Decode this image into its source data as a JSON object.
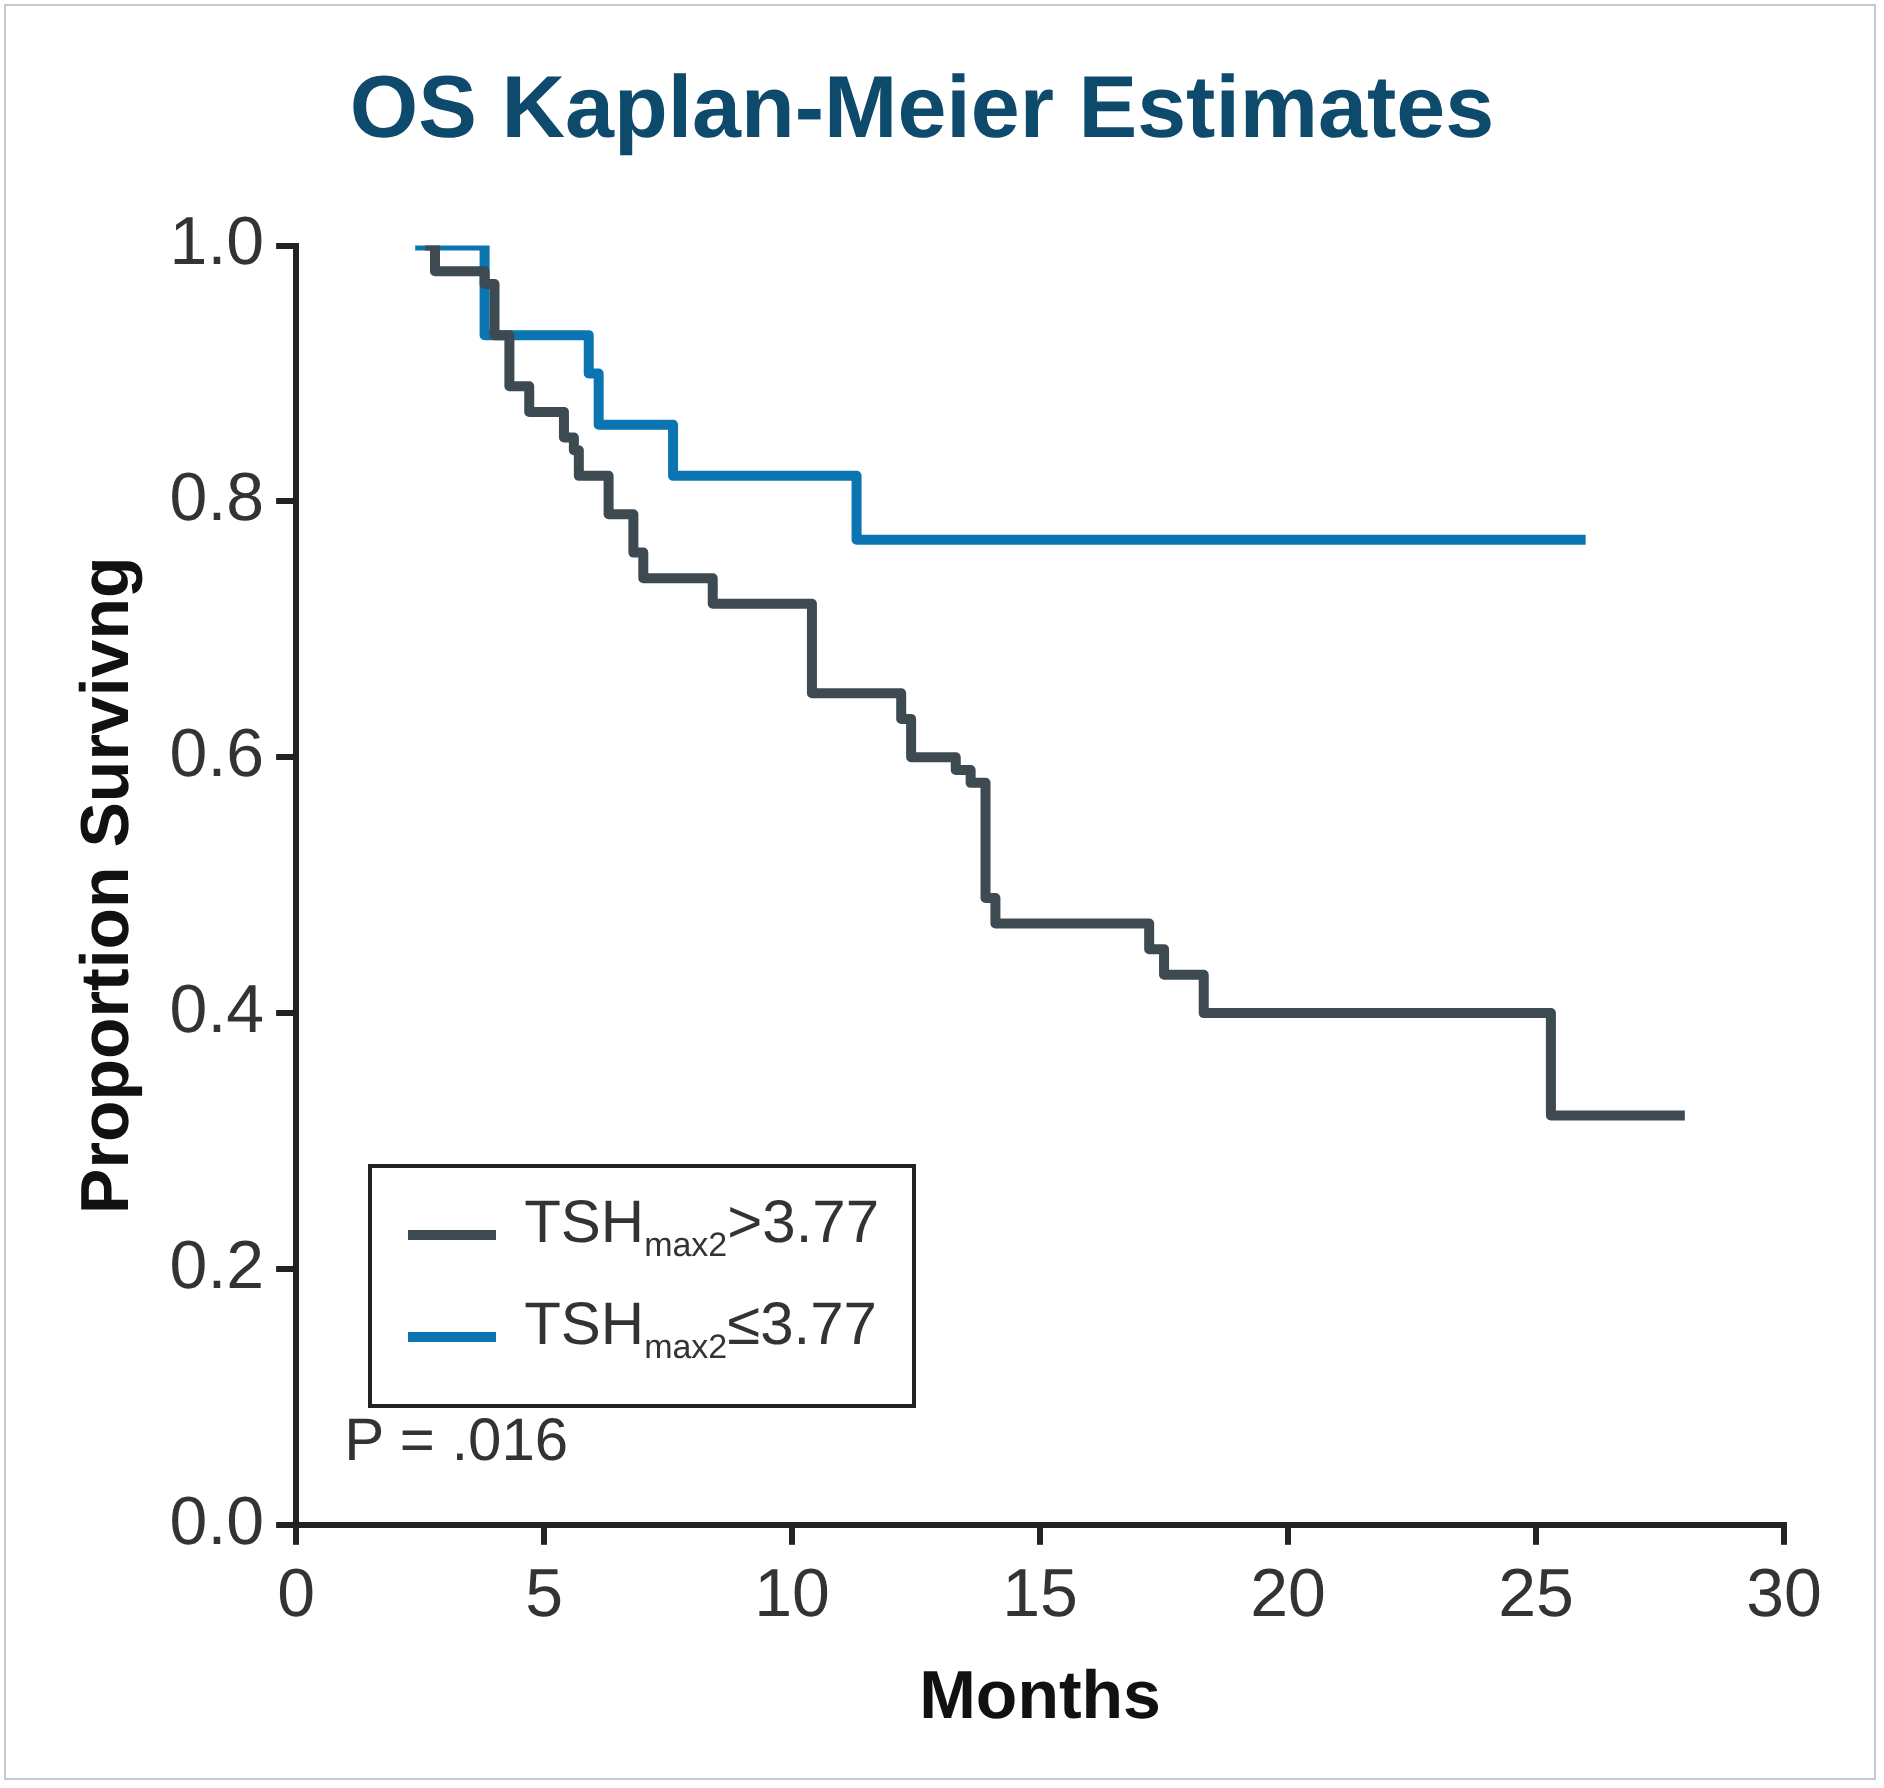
{
  "chart_data": {
    "type": "step",
    "title": "OS Kaplan-Meier Estimates",
    "xlabel": "Months",
    "ylabel": "Proportion Survivng",
    "xlim": [
      0,
      30
    ],
    "xticks": [
      0,
      5,
      10,
      15,
      20,
      25,
      30
    ],
    "ylim": [
      0,
      1
    ],
    "yticks": [
      {
        "value": 0,
        "label": "0.0"
      },
      {
        "value": 0.2,
        "label": "0.2"
      },
      {
        "value": 0.4,
        "label": "0.4"
      },
      {
        "value": 0.6,
        "label": "0.6"
      },
      {
        "value": 0.8,
        "label": "0.8"
      },
      {
        "value": 1,
        "label": "1.0"
      }
    ],
    "grid": false,
    "legend": "bottom left",
    "marker": "none",
    "line_style": "solid",
    "annotations": [
      "P = .016"
    ],
    "series": [
      {
        "name": "TSH$_{max2}$>3.77",
        "color": "#3d4a52",
        "x": [
          2.6,
          2.8,
          3.8,
          4.0,
          4.3,
          4.7,
          5.4,
          5.6,
          5.7,
          6.3,
          6.8,
          7.0,
          8.4,
          10.4,
          12.2,
          12.4,
          13.3,
          13.6,
          13.9,
          14.1,
          17.2,
          17.5,
          18.3,
          25.3,
          28.0
        ],
        "values": [
          1.0,
          0.98,
          0.97,
          0.93,
          0.89,
          0.87,
          0.85,
          0.84,
          0.82,
          0.79,
          0.76,
          0.74,
          0.72,
          0.65,
          0.63,
          0.6,
          0.59,
          0.58,
          0.49,
          0.47,
          0.45,
          0.43,
          0.4,
          0.32,
          0.32
        ]
      },
      {
        "name": "TSH$_{max2}$≤3.77",
        "color": "#0a75b0",
        "x": [
          2.4,
          3.8,
          5.9,
          6.1,
          7.6,
          11.3,
          26.0
        ],
        "values": [
          1.0,
          0.93,
          0.9,
          0.86,
          0.82,
          0.77,
          0.77
        ]
      }
    ]
  }
}
